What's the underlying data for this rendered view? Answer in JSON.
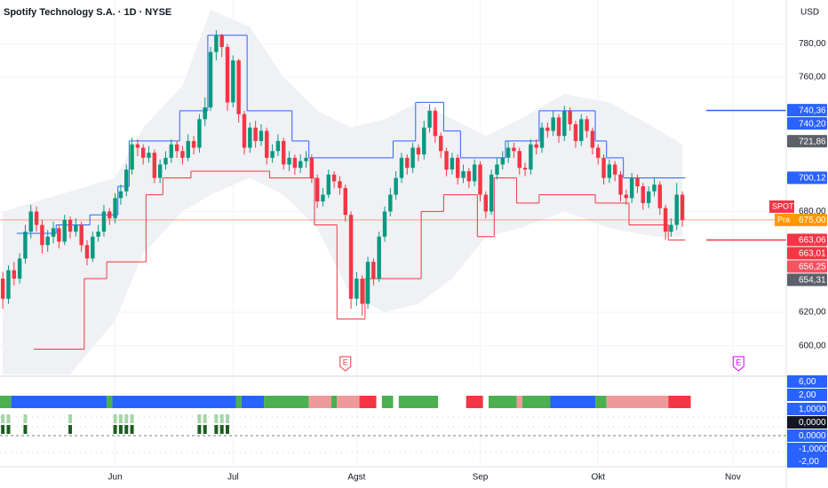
{
  "chart_data": {
    "type": "candlestick",
    "title": "Spotify Technology S.A. · 1D · NYSE",
    "currency": "USD",
    "up_color": "#089981",
    "down_color": "#f23645",
    "ylim": [
      584,
      806
    ],
    "xlim": [
      -0.5,
      139.5
    ],
    "yticks": [
      {
        "value": 780,
        "label": "780,00"
      },
      {
        "value": 760,
        "label": "760,00"
      },
      {
        "value": 680,
        "label": "680,00"
      },
      {
        "value": 620,
        "label": "620,00"
      },
      {
        "value": 600,
        "label": "600,00"
      }
    ],
    "xticks": [
      {
        "value": 20,
        "label": "Jun"
      },
      {
        "value": 41,
        "label": "Jul"
      },
      {
        "value": 63,
        "label": "Agst"
      },
      {
        "value": 85,
        "label": "Sep"
      },
      {
        "value": 106,
        "label": "Okt"
      },
      {
        "value": 130,
        "label": "Nov"
      }
    ],
    "grid": true,
    "ohlc": [
      [
        640,
        644,
        622,
        628
      ],
      [
        628,
        648,
        625,
        645
      ],
      [
        645,
        650,
        636,
        640
      ],
      [
        640,
        655,
        637,
        652
      ],
      [
        652,
        672,
        649,
        668
      ],
      [
        668,
        684,
        664,
        680
      ],
      [
        680,
        683,
        668,
        672
      ],
      [
        672,
        675,
        655,
        660
      ],
      [
        660,
        669,
        656,
        665
      ],
      [
        665,
        674,
        661,
        670
      ],
      [
        670,
        672,
        658,
        662
      ],
      [
        662,
        678,
        660,
        675
      ],
      [
        675,
        677,
        664,
        668
      ],
      [
        668,
        676,
        665,
        672
      ],
      [
        672,
        674,
        656,
        660
      ],
      [
        660,
        663,
        648,
        652
      ],
      [
        652,
        668,
        650,
        665
      ],
      [
        665,
        672,
        662,
        668
      ],
      [
        668,
        684,
        665,
        680
      ],
      [
        680,
        682,
        672,
        676
      ],
      [
        676,
        691,
        673,
        688
      ],
      [
        688,
        696,
        684,
        692
      ],
      [
        692,
        708,
        689,
        705
      ],
      [
        705,
        724,
        702,
        720
      ],
      [
        720,
        723,
        713,
        718
      ],
      [
        718,
        720,
        708,
        712
      ],
      [
        712,
        719,
        709,
        715
      ],
      [
        715,
        717,
        697,
        700
      ],
      [
        700,
        711,
        697,
        708
      ],
      [
        708,
        716,
        705,
        712
      ],
      [
        712,
        723,
        709,
        720
      ],
      [
        720,
        722,
        712,
        716
      ],
      [
        716,
        719,
        708,
        712
      ],
      [
        712,
        726,
        710,
        722
      ],
      [
        722,
        725,
        714,
        718
      ],
      [
        718,
        738,
        715,
        735
      ],
      [
        735,
        748,
        731,
        742
      ],
      [
        742,
        778,
        740,
        775
      ],
      [
        775,
        788,
        770,
        785
      ],
      [
        785,
        786,
        772,
        778
      ],
      [
        778,
        780,
        740,
        745
      ],
      [
        745,
        773,
        742,
        770
      ],
      [
        770,
        771,
        733,
        738
      ],
      [
        738,
        740,
        714,
        718
      ],
      [
        718,
        733,
        715,
        730
      ],
      [
        730,
        734,
        718,
        722
      ],
      [
        722,
        732,
        719,
        728
      ],
      [
        728,
        730,
        708,
        712
      ],
      [
        712,
        720,
        709,
        716
      ],
      [
        716,
        726,
        713,
        722
      ],
      [
        722,
        724,
        705,
        708
      ],
      [
        708,
        716,
        704,
        712
      ],
      [
        712,
        714,
        702,
        706
      ],
      [
        706,
        714,
        703,
        710
      ],
      [
        710,
        716,
        706,
        712
      ],
      [
        712,
        714,
        697,
        700
      ],
      [
        700,
        702,
        682,
        686
      ],
      [
        686,
        694,
        683,
        690
      ],
      [
        690,
        705,
        688,
        702
      ],
      [
        702,
        704,
        694,
        698
      ],
      [
        698,
        701,
        690,
        694
      ],
      [
        694,
        696,
        674,
        678
      ],
      [
        678,
        680,
        622,
        628
      ],
      [
        628,
        644,
        624,
        640
      ],
      [
        640,
        642,
        618,
        625
      ],
      [
        625,
        653,
        622,
        650
      ],
      [
        650,
        652,
        636,
        640
      ],
      [
        640,
        668,
        638,
        665
      ],
      [
        665,
        683,
        662,
        680
      ],
      [
        680,
        694,
        677,
        690
      ],
      [
        690,
        704,
        687,
        700
      ],
      [
        700,
        715,
        697,
        712
      ],
      [
        712,
        714,
        702,
        706
      ],
      [
        706,
        721,
        703,
        718
      ],
      [
        718,
        720,
        710,
        714
      ],
      [
        714,
        734,
        711,
        730
      ],
      [
        730,
        744,
        727,
        740
      ],
      [
        740,
        742,
        721,
        725
      ],
      [
        725,
        727,
        712,
        716
      ],
      [
        716,
        718,
        701,
        705
      ],
      [
        705,
        715,
        702,
        712
      ],
      [
        712,
        714,
        696,
        700
      ],
      [
        700,
        708,
        697,
        704
      ],
      [
        704,
        706,
        694,
        698
      ],
      [
        698,
        711,
        695,
        708
      ],
      [
        708,
        710,
        686,
        690
      ],
      [
        690,
        692,
        676,
        680
      ],
      [
        680,
        705,
        678,
        702
      ],
      [
        702,
        712,
        699,
        708
      ],
      [
        708,
        716,
        705,
        712
      ],
      [
        712,
        722,
        709,
        718
      ],
      [
        718,
        721,
        712,
        716
      ],
      [
        716,
        718,
        702,
        706
      ],
      [
        706,
        709,
        701,
        705
      ],
      [
        705,
        723,
        702,
        720
      ],
      [
        720,
        723,
        714,
        718
      ],
      [
        718,
        733,
        715,
        730
      ],
      [
        730,
        733,
        724,
        728
      ],
      [
        728,
        740,
        725,
        736
      ],
      [
        736,
        738,
        721,
        725
      ],
      [
        725,
        743,
        722,
        740
      ],
      [
        740,
        742,
        728,
        732
      ],
      [
        732,
        734,
        718,
        722
      ],
      [
        722,
        738,
        719,
        735
      ],
      [
        735,
        737,
        724,
        728
      ],
      [
        728,
        730,
        714,
        718
      ],
      [
        718,
        720,
        708,
        712
      ],
      [
        712,
        714,
        696,
        700
      ],
      [
        700,
        711,
        697,
        708
      ],
      [
        708,
        710,
        698,
        702
      ],
      [
        702,
        704,
        686,
        690
      ],
      [
        690,
        693,
        684,
        688
      ],
      [
        688,
        703,
        685,
        700
      ],
      [
        700,
        702,
        691,
        695
      ],
      [
        695,
        697,
        681,
        685
      ],
      [
        685,
        695,
        682,
        692
      ],
      [
        692,
        700,
        689,
        696
      ],
      [
        696,
        698,
        678,
        682
      ],
      [
        682,
        684,
        663,
        668
      ],
      [
        668,
        676,
        665,
        672
      ],
      [
        672,
        697,
        669,
        690
      ],
      [
        690,
        692,
        671,
        675
      ]
    ],
    "upper_line": {
      "color": "#2962ff",
      "steps": [
        [
          3,
          10,
          667
        ],
        [
          10,
          16,
          672
        ],
        [
          16,
          21,
          678
        ],
        [
          21,
          23,
          695
        ],
        [
          23,
          32,
          722
        ],
        [
          32,
          37,
          740
        ],
        [
          37,
          44,
          785
        ],
        [
          44,
          52,
          740
        ],
        [
          52,
          55,
          722
        ],
        [
          55,
          70,
          712
        ],
        [
          70,
          74,
          722
        ],
        [
          74,
          79,
          745
        ],
        [
          79,
          82,
          728
        ],
        [
          82,
          90,
          712
        ],
        [
          90,
          96,
          722
        ],
        [
          96,
          106,
          740
        ],
        [
          106,
          108,
          722
        ],
        [
          108,
          111,
          712
        ],
        [
          111,
          122,
          700
        ]
      ]
    },
    "lower_line": {
      "color": "#f23645",
      "steps": [
        [
          6,
          15,
          598
        ],
        [
          15,
          19,
          640
        ],
        [
          19,
          26,
          650
        ],
        [
          26,
          29,
          690
        ],
        [
          29,
          34,
          700
        ],
        [
          34,
          48,
          704
        ],
        [
          48,
          56,
          700
        ],
        [
          56,
          60,
          672
        ],
        [
          60,
          65,
          616
        ],
        [
          65,
          75,
          640
        ],
        [
          75,
          79,
          680
        ],
        [
          79,
          85,
          690
        ],
        [
          85,
          88,
          665
        ],
        [
          88,
          92,
          700
        ],
        [
          92,
          96,
          685
        ],
        [
          96,
          106,
          690
        ],
        [
          106,
          112,
          685
        ],
        [
          112,
          119,
          672
        ],
        [
          119,
          122,
          663
        ]
      ]
    },
    "band": {
      "color": "#eceef2",
      "points": [
        [
          0,
          680,
          560
        ],
        [
          10,
          690,
          575
        ],
        [
          20,
          700,
          615
        ],
        [
          25,
          730,
          655
        ],
        [
          32,
          755,
          680
        ],
        [
          37,
          800,
          690
        ],
        [
          44,
          790,
          700
        ],
        [
          50,
          760,
          690
        ],
        [
          56,
          740,
          670
        ],
        [
          62,
          730,
          630
        ],
        [
          68,
          735,
          620
        ],
        [
          74,
          745,
          625
        ],
        [
          80,
          735,
          640
        ],
        [
          86,
          725,
          665
        ],
        [
          92,
          735,
          670
        ],
        [
          100,
          750,
          680
        ],
        [
          108,
          745,
          670
        ],
        [
          116,
          730,
          665
        ],
        [
          121,
          720,
          665
        ]
      ]
    },
    "last_price": 675,
    "ticker": "SPOT",
    "price_tag": "Pra",
    "price_boxes": [
      {
        "value": 740.36,
        "label": "740,36",
        "color": "#2962ff"
      },
      {
        "value": 740.2,
        "label": "740,20",
        "color": "#2962ff"
      },
      {
        "value": 721.86,
        "label": "721,86",
        "color": "#5d606b"
      },
      {
        "value": 700.12,
        "label": "700,12",
        "color": "#2962ff"
      },
      {
        "value": 675,
        "label": "675,00",
        "color": "#ff9800"
      },
      {
        "value": 663.06,
        "label": "663,06",
        "color": "#f23645"
      },
      {
        "value": 663.01,
        "label": "663,01",
        "color": "#f23645"
      },
      {
        "value": 656.25,
        "label": "656,25",
        "color": "#f7525f"
      },
      {
        "value": 654.31,
        "label": "654,31",
        "color": "#5d606b"
      }
    ],
    "right_levels": [
      {
        "value": 740.2,
        "color": "#2962ff"
      },
      {
        "value": 663.01,
        "color": "#f23645"
      }
    ],
    "earnings": [
      {
        "index": 61,
        "label": "E",
        "color": "#f23645"
      },
      {
        "index": 131,
        "label": "E",
        "color": "#d500f9"
      }
    ],
    "regime": [
      [
        0,
        2,
        "#4caf50"
      ],
      [
        2,
        19,
        "#2962ff"
      ],
      [
        19,
        20,
        "#4caf50"
      ],
      [
        20,
        42,
        "#2962ff"
      ],
      [
        42,
        43,
        "#4caf50"
      ],
      [
        43,
        47,
        "#2962ff"
      ],
      [
        47,
        55,
        "#4caf50"
      ],
      [
        55,
        59,
        "#ef9a9a"
      ],
      [
        59,
        60,
        "#4caf50"
      ],
      [
        60,
        64,
        "#ef9a9a"
      ],
      [
        64,
        67,
        "#f23645"
      ],
      [
        68,
        70,
        "#4caf50"
      ],
      [
        71,
        78,
        "#4caf50"
      ],
      [
        83,
        86,
        "#f23645"
      ],
      [
        87,
        92,
        "#4caf50"
      ],
      [
        92,
        93,
        "#ef9a9a"
      ],
      [
        93,
        98,
        "#4caf50"
      ],
      [
        98,
        106,
        "#2962ff"
      ],
      [
        106,
        108,
        "#4caf50"
      ],
      [
        108,
        119,
        "#ef9a9a"
      ],
      [
        119,
        123,
        "#f23645"
      ]
    ],
    "signal_bars": [
      0,
      1,
      4,
      12,
      20,
      21,
      22,
      23,
      35,
      36,
      38,
      39,
      40
    ],
    "indicator_axis_labels": [
      {
        "label": "6,00",
        "color": "#2962ff"
      },
      {
        "label": "2,00",
        "color": "#2962ff"
      },
      {
        "label": "1,0000",
        "color": "#2962ff"
      },
      {
        "label": "0,0000",
        "color": "#131722"
      },
      {
        "label": "0,0000",
        "color": "#2962ff"
      },
      {
        "label": "-1,0000",
        "color": "#2962ff"
      },
      {
        "label": "-2,00",
        "color": "#2962ff"
      }
    ]
  }
}
